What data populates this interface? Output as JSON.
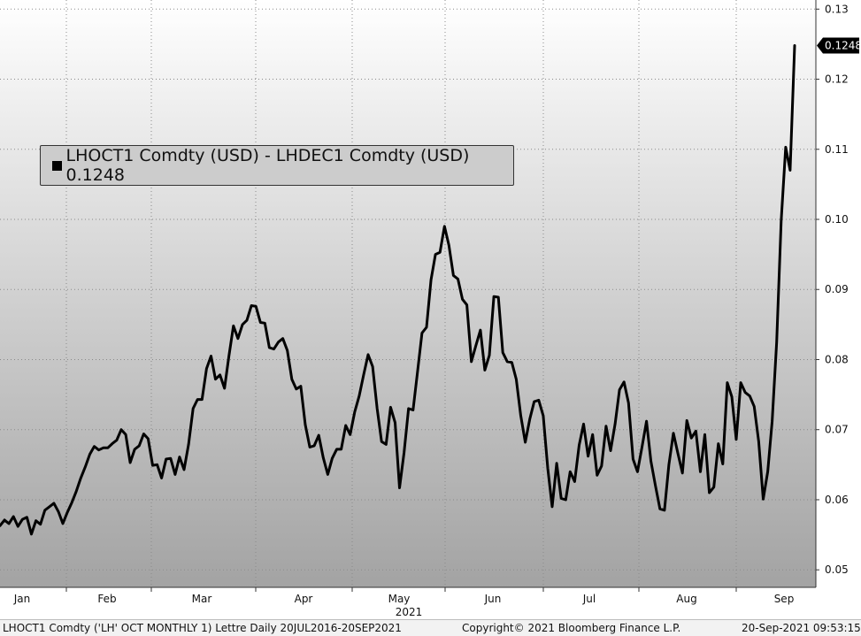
{
  "chart_data": {
    "type": "line",
    "year_label": "2021",
    "x_labels": [
      "Jan",
      "Feb",
      "Mar",
      "Apr",
      "May",
      "Jun",
      "Jul",
      "Aug",
      "Sep"
    ],
    "y_ticks": [
      "0.13",
      "0.12",
      "0.11",
      "0.10",
      "0.09",
      "0.08",
      "0.07",
      "0.06",
      "0.05"
    ],
    "ylim": [
      0.0475,
      0.1313
    ],
    "grid": true,
    "last_value_label": "0.1248",
    "series": [
      {
        "name": "LHOCT1 Comdty (USD) - LHDEC1 Comdty (USD) 0.1248",
        "color": "#000000",
        "values": [
          0.0563,
          0.0571,
          0.0566,
          0.0576,
          0.0562,
          0.0572,
          0.0575,
          0.0551,
          0.057,
          0.0565,
          0.0585,
          0.059,
          0.0595,
          0.0583,
          0.0566,
          0.0582,
          0.0596,
          0.0612,
          0.0631,
          0.0647,
          0.0665,
          0.0676,
          0.0671,
          0.0674,
          0.0674,
          0.068,
          0.0685,
          0.07,
          0.0693,
          0.0653,
          0.0672,
          0.0677,
          0.0694,
          0.0687,
          0.0649,
          0.065,
          0.0631,
          0.0658,
          0.0659,
          0.0636,
          0.0661,
          0.0643,
          0.0679,
          0.073,
          0.0743,
          0.0743,
          0.0787,
          0.0805,
          0.0772,
          0.0778,
          0.0759,
          0.0805,
          0.0848,
          0.083,
          0.085,
          0.0856,
          0.0877,
          0.0876,
          0.0853,
          0.0852,
          0.0817,
          0.0815,
          0.0825,
          0.083,
          0.0813,
          0.0772,
          0.0758,
          0.0762,
          0.0707,
          0.0675,
          0.0677,
          0.0692,
          0.066,
          0.0636,
          0.0659,
          0.0672,
          0.0672,
          0.0706,
          0.0693,
          0.0725,
          0.0748,
          0.0778,
          0.0807,
          0.079,
          0.073,
          0.0683,
          0.0679,
          0.0732,
          0.071,
          0.0617,
          0.0667,
          0.073,
          0.0728,
          0.0782,
          0.0838,
          0.0846,
          0.0914,
          0.095,
          0.0953,
          0.099,
          0.0963,
          0.092,
          0.0915,
          0.0886,
          0.0878,
          0.0797,
          0.082,
          0.0842,
          0.0785,
          0.0806,
          0.089,
          0.0889,
          0.081,
          0.0797,
          0.0796,
          0.0772,
          0.072,
          0.0682,
          0.0715,
          0.074,
          0.0742,
          0.072,
          0.0645,
          0.059,
          0.0652,
          0.0602,
          0.06,
          0.064,
          0.0626,
          0.0678,
          0.0708,
          0.0662,
          0.0693,
          0.0635,
          0.0648,
          0.0705,
          0.067,
          0.0708,
          0.0757,
          0.0768,
          0.0738,
          0.0658,
          0.064,
          0.0675,
          0.0712,
          0.0655,
          0.062,
          0.0587,
          0.0585,
          0.065,
          0.0695,
          0.0666,
          0.0638,
          0.0713,
          0.0688,
          0.0698,
          0.064,
          0.0693,
          0.061,
          0.0618,
          0.068,
          0.0651,
          0.0767,
          0.0747,
          0.0686,
          0.0767,
          0.0753,
          0.0748,
          0.0733,
          0.0683,
          0.0601,
          0.064,
          0.0712,
          0.0825,
          0.0998,
          0.1103,
          0.107,
          0.1248
        ]
      }
    ]
  },
  "footer": {
    "left": "LHOCT1 Comdty ('LH' OCT MONTHLY 1) Lettre  Daily 20JUL2016-20SEP2021",
    "middle": "Copyright© 2021 Bloomberg Finance L.P.",
    "right": "20-Sep-2021 09:53:15"
  }
}
